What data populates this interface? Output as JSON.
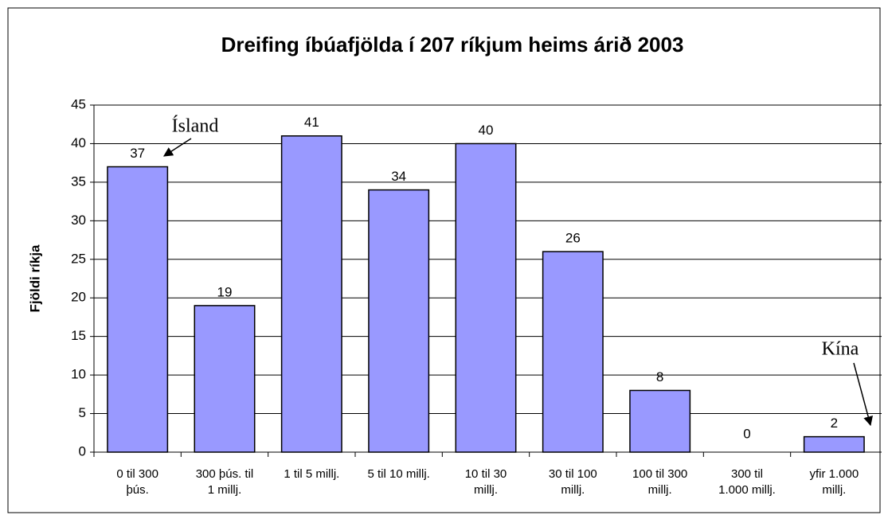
{
  "chart_data": {
    "type": "bar",
    "title": "Dreifing íbúafjölda í 207 ríkjum heims árið 2003",
    "y_label": "Fjöldi ríkja",
    "categories": [
      "0 til 300\nþús.",
      "300 þús. til\n1 millj.",
      "1 til 5 millj.",
      "5 til 10 millj.",
      "10 til 30\nmillj.",
      "30 til 100\nmillj.",
      "100 til 300\nmillj.",
      "300 til\n1.000 millj.",
      "yfir 1.000\nmillj."
    ],
    "values": [
      37,
      19,
      41,
      34,
      40,
      26,
      8,
      0,
      2
    ],
    "color": "#9999ff",
    "ylim": [
      0,
      45
    ],
    "yticks": [
      0,
      5,
      10,
      15,
      20,
      25,
      30,
      35,
      40,
      45
    ],
    "grid": true,
    "annotations": [
      "Ísland",
      "Kína"
    ]
  }
}
